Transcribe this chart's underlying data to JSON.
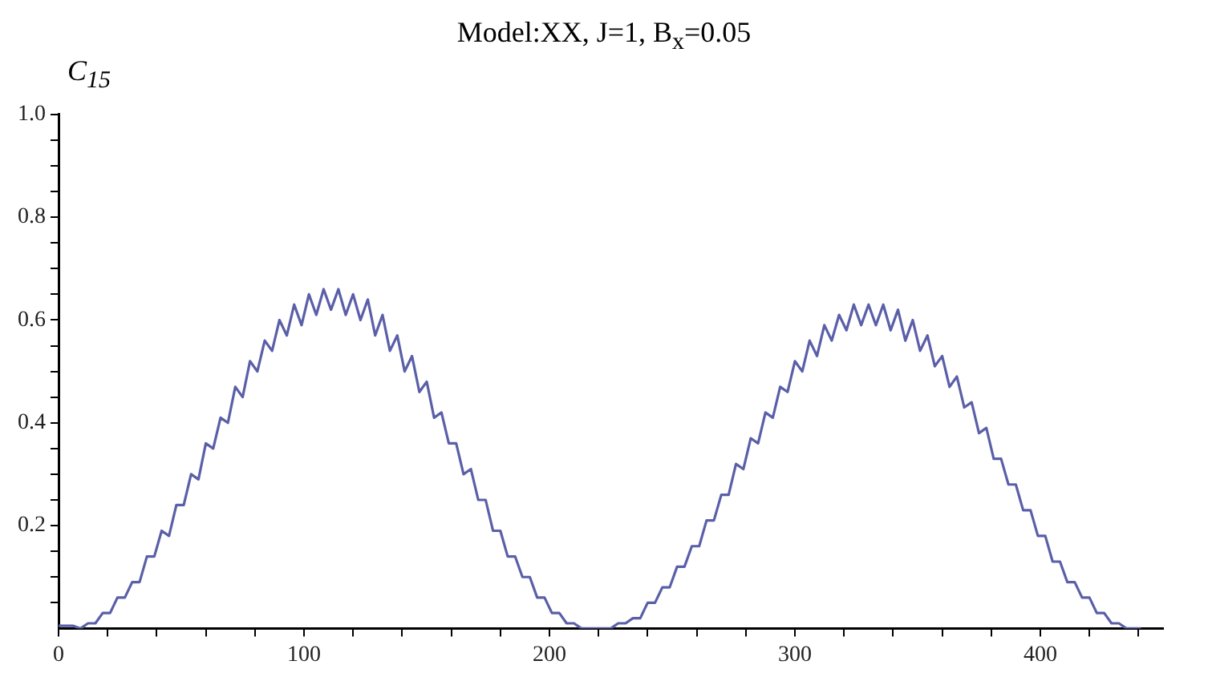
{
  "chart_data": {
    "type": "line",
    "title": "Model:XX, J=1, B$_{x}$=0.05",
    "ylabel": "C$_{15}$",
    "marker": "none",
    "x": [
      0,
      3,
      6,
      9,
      12,
      15,
      18,
      21,
      24,
      27,
      30,
      33,
      36,
      39,
      42,
      45,
      48,
      51,
      54,
      57,
      60,
      63,
      66,
      69,
      72,
      75,
      78,
      81,
      84,
      87,
      90,
      93,
      96,
      99,
      102,
      105,
      108,
      111,
      114,
      117,
      120,
      123,
      126,
      129,
      132,
      135,
      138,
      141,
      144,
      147,
      150,
      153,
      156,
      159,
      162,
      165,
      168,
      171,
      174,
      177,
      180,
      183,
      186,
      189,
      192,
      195,
      198,
      201,
      204,
      207,
      210,
      213,
      216,
      219,
      222,
      225,
      228,
      231,
      234,
      237,
      240,
      243,
      246,
      249,
      252,
      255,
      258,
      261,
      264,
      267,
      270,
      273,
      276,
      279,
      282,
      285,
      288,
      291,
      294,
      297,
      300,
      303,
      306,
      309,
      312,
      315,
      318,
      321,
      324,
      327,
      330,
      333,
      336,
      339,
      342,
      345,
      348,
      351,
      354,
      357,
      360,
      363,
      366,
      369,
      372,
      375,
      378,
      381,
      384,
      387,
      390,
      393,
      396,
      399,
      402,
      405,
      408,
      411,
      414,
      417,
      420,
      423,
      426,
      429,
      432,
      435,
      438,
      441
    ],
    "series": [
      {
        "color": "#5a5fa8",
        "values": [
          0.005,
          0.005,
          0.005,
          0,
          0.01,
          0.01,
          0.03,
          0.03,
          0.06,
          0.06,
          0.09,
          0.09,
          0.14,
          0.14,
          0.19,
          0.18,
          0.24,
          0.24,
          0.3,
          0.29,
          0.36,
          0.35,
          0.41,
          0.4,
          0.47,
          0.45,
          0.52,
          0.5,
          0.56,
          0.54,
          0.6,
          0.57,
          0.63,
          0.59,
          0.65,
          0.61,
          0.66,
          0.62,
          0.66,
          0.61,
          0.65,
          0.6,
          0.64,
          0.57,
          0.61,
          0.54,
          0.57,
          0.5,
          0.53,
          0.46,
          0.48,
          0.41,
          0.42,
          0.36,
          0.36,
          0.3,
          0.31,
          0.25,
          0.25,
          0.19,
          0.19,
          0.14,
          0.14,
          0.1,
          0.1,
          0.06,
          0.06,
          0.03,
          0.03,
          0.01,
          0.01,
          0,
          0,
          0,
          0,
          0,
          0.01,
          0.01,
          0.02,
          0.02,
          0.05,
          0.05,
          0.08,
          0.08,
          0.12,
          0.12,
          0.16,
          0.16,
          0.21,
          0.21,
          0.26,
          0.26,
          0.32,
          0.31,
          0.37,
          0.36,
          0.42,
          0.41,
          0.47,
          0.46,
          0.52,
          0.5,
          0.56,
          0.53,
          0.59,
          0.56,
          0.61,
          0.58,
          0.63,
          0.59,
          0.63,
          0.59,
          0.63,
          0.58,
          0.62,
          0.56,
          0.6,
          0.54,
          0.57,
          0.51,
          0.53,
          0.47,
          0.49,
          0.43,
          0.44,
          0.38,
          0.39,
          0.33,
          0.33,
          0.28,
          0.28,
          0.23,
          0.23,
          0.18,
          0.18,
          0.13,
          0.13,
          0.09,
          0.09,
          0.06,
          0.06,
          0.03,
          0.03,
          0.01,
          0.01,
          0,
          0,
          0
        ]
      }
    ],
    "xlim": [
      0,
      450
    ],
    "xticks": [
      0,
      {
        "value": 20,
        "label": null
      },
      {
        "value": 40,
        "label": null
      },
      {
        "value": 60,
        "label": null
      },
      {
        "value": 80,
        "label": null
      },
      100,
      {
        "value": 120,
        "label": null
      },
      {
        "value": 140,
        "label": null
      },
      {
        "value": 160,
        "label": null
      },
      {
        "value": 180,
        "label": null
      },
      200,
      {
        "value": 220,
        "label": null
      },
      {
        "value": 240,
        "label": null
      },
      {
        "value": 260,
        "label": null
      },
      {
        "value": 280,
        "label": null
      },
      300,
      {
        "value": 320,
        "label": null
      },
      {
        "value": 340,
        "label": null
      },
      {
        "value": 360,
        "label": null
      },
      {
        "value": 380,
        "label": null
      },
      400,
      {
        "value": 420,
        "label": null
      },
      {
        "value": 440,
        "label": null
      }
    ],
    "ylim": [
      0,
      1
    ],
    "yticks": [
      {
        "value": 0.05,
        "label": null
      },
      {
        "value": 0.1,
        "label": null
      },
      {
        "value": 0.15,
        "label": null
      },
      0.2,
      {
        "value": 0.25,
        "label": null
      },
      {
        "value": 0.3,
        "label": null
      },
      {
        "value": 0.35,
        "label": null
      },
      0.4,
      {
        "value": 0.45,
        "label": null
      },
      {
        "value": 0.5,
        "label": null
      },
      {
        "value": 0.55,
        "label": null
      },
      0.6,
      {
        "value": 0.65,
        "label": null
      },
      {
        "value": 0.7,
        "label": null
      },
      {
        "value": 0.75,
        "label": null
      },
      0.8,
      {
        "value": 0.85,
        "label": null
      },
      {
        "value": 0.9,
        "label": null
      },
      {
        "value": 0.95,
        "label": null
      },
      {
        "value": 1,
        "label": "1.0"
      }
    ]
  }
}
